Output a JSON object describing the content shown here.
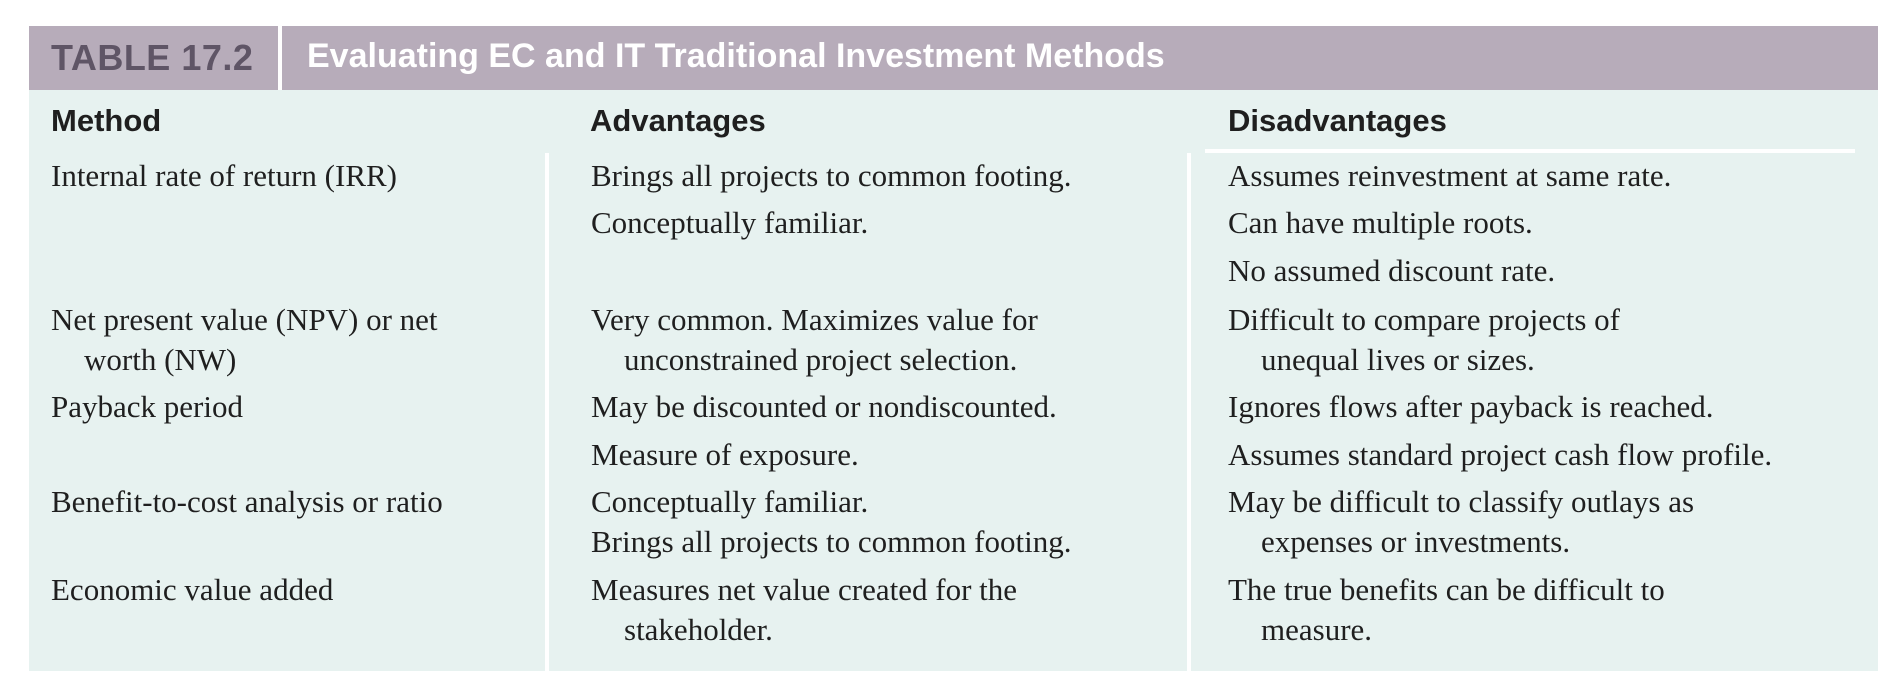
{
  "table": {
    "label": "TABLE 17.2",
    "title": "Evaluating EC and IT Traditional Investment Methods",
    "columns": {
      "method": "Method",
      "advantages": "Advantages",
      "disadvantages": "Disadvantages"
    },
    "rows": [
      {
        "method": [
          "Internal rate of return (IRR)"
        ],
        "advantages": [
          [
            "Brings all projects to common footing."
          ],
          [
            "Conceptually familiar."
          ]
        ],
        "disadvantages": [
          [
            "Assumes reinvestment at same rate."
          ],
          [
            "Can have multiple roots."
          ],
          [
            "No assumed discount rate."
          ]
        ]
      },
      {
        "method": [
          "Net present value (NPV) or net",
          "worth (NW)"
        ],
        "advantages": [
          [
            "Very common. Maximizes value for",
            "unconstrained project selection."
          ]
        ],
        "disadvantages": [
          [
            "Difficult to compare projects of",
            "unequal lives or sizes."
          ]
        ]
      },
      {
        "method": [
          "Payback period"
        ],
        "advantages": [
          [
            "May be discounted or nondiscounted."
          ],
          [
            "Measure of exposure."
          ]
        ],
        "disadvantages": [
          [
            "Ignores flows after payback is reached."
          ],
          [
            "Assumes standard project cash flow profile."
          ]
        ]
      },
      {
        "method": [
          "Benefit-to-cost analysis or ratio"
        ],
        "advantages": [
          [
            "Conceptually familiar."
          ],
          [
            "Brings all projects to common footing."
          ]
        ],
        "disadvantages": [
          [
            "May be difficult to classify outlays as",
            "expenses or investments."
          ]
        ]
      },
      {
        "method": [
          "Economic value added"
        ],
        "advantages": [
          [
            "Measures net value created for the",
            "stakeholder."
          ]
        ],
        "disadvantages": [
          [
            "The true benefits can be difficult to",
            "measure."
          ]
        ]
      }
    ]
  },
  "colors": {
    "title_bar": "#b7acba",
    "label_text": "#5f5566",
    "body_background": "#e7f2f0"
  }
}
